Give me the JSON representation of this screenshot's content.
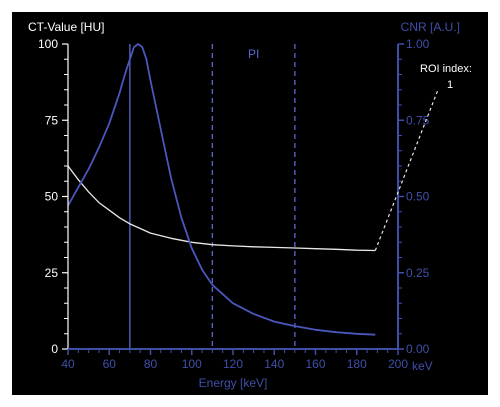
{
  "chart_data": {
    "type": "line",
    "x_label": "Energy [keV]",
    "x_unit": "keV",
    "xlim": [
      40,
      200
    ],
    "x_ticks": [
      "40",
      "60",
      "80",
      "100",
      "120",
      "140",
      "160",
      "180",
      "200"
    ],
    "y_left_label": "CT-Value [HU]",
    "y_left_lim": [
      0,
      100
    ],
    "y_left_ticks": [
      "0",
      "25",
      "50",
      "75",
      "100"
    ],
    "y_right_label": "CNR [A.U.]",
    "y_right_lim": [
      0,
      1
    ],
    "y_right_ticks": [
      "0.00",
      "0.25",
      "0.50",
      "0.75",
      "1.00"
    ],
    "grid": false,
    "colors": {
      "background": "#000000",
      "left_axis": "#ffffff",
      "right_axis": "#3f4fa8",
      "ct_curve": "#e8e8e8",
      "cnr_curve": "#4a57bd",
      "markers": "#5b68d0"
    },
    "series": [
      {
        "axis": "left",
        "x": [
          40,
          45,
          50,
          55,
          60,
          65,
          70,
          75,
          80,
          90,
          100,
          110,
          120,
          130,
          140,
          150,
          160,
          170,
          180,
          189
        ],
        "values": [
          60,
          55.5,
          51.5,
          48,
          45.5,
          43,
          41,
          39.5,
          38,
          36.3,
          35,
          34.2,
          33.8,
          33.5,
          33.3,
          33.1,
          32.9,
          32.7,
          32.4,
          32.3
        ]
      },
      {
        "axis": "right",
        "x": [
          40,
          45,
          50,
          55,
          60,
          65,
          68,
          70,
          72,
          74,
          76,
          78,
          80,
          85,
          90,
          95,
          100,
          105,
          110,
          120,
          130,
          140,
          150,
          160,
          170,
          180,
          189
        ],
        "values": [
          0.47,
          0.53,
          0.59,
          0.66,
          0.74,
          0.84,
          0.91,
          0.95,
          0.99,
          1.0,
          0.99,
          0.95,
          0.88,
          0.72,
          0.56,
          0.43,
          0.33,
          0.26,
          0.21,
          0.15,
          0.115,
          0.09,
          0.075,
          0.063,
          0.055,
          0.05,
          0.047
        ]
      }
    ],
    "markers": [
      {
        "x": 70,
        "style": "solid"
      },
      {
        "x": 110,
        "style": "dashed",
        "label": "PI"
      },
      {
        "x": 150,
        "style": "dashed"
      }
    ],
    "roi": {
      "label_line1": "ROI index:",
      "label_line2": "1",
      "pointer_from": [
        189,
        32.3
      ],
      "pointer_to": [
        200,
        85
      ]
    }
  }
}
